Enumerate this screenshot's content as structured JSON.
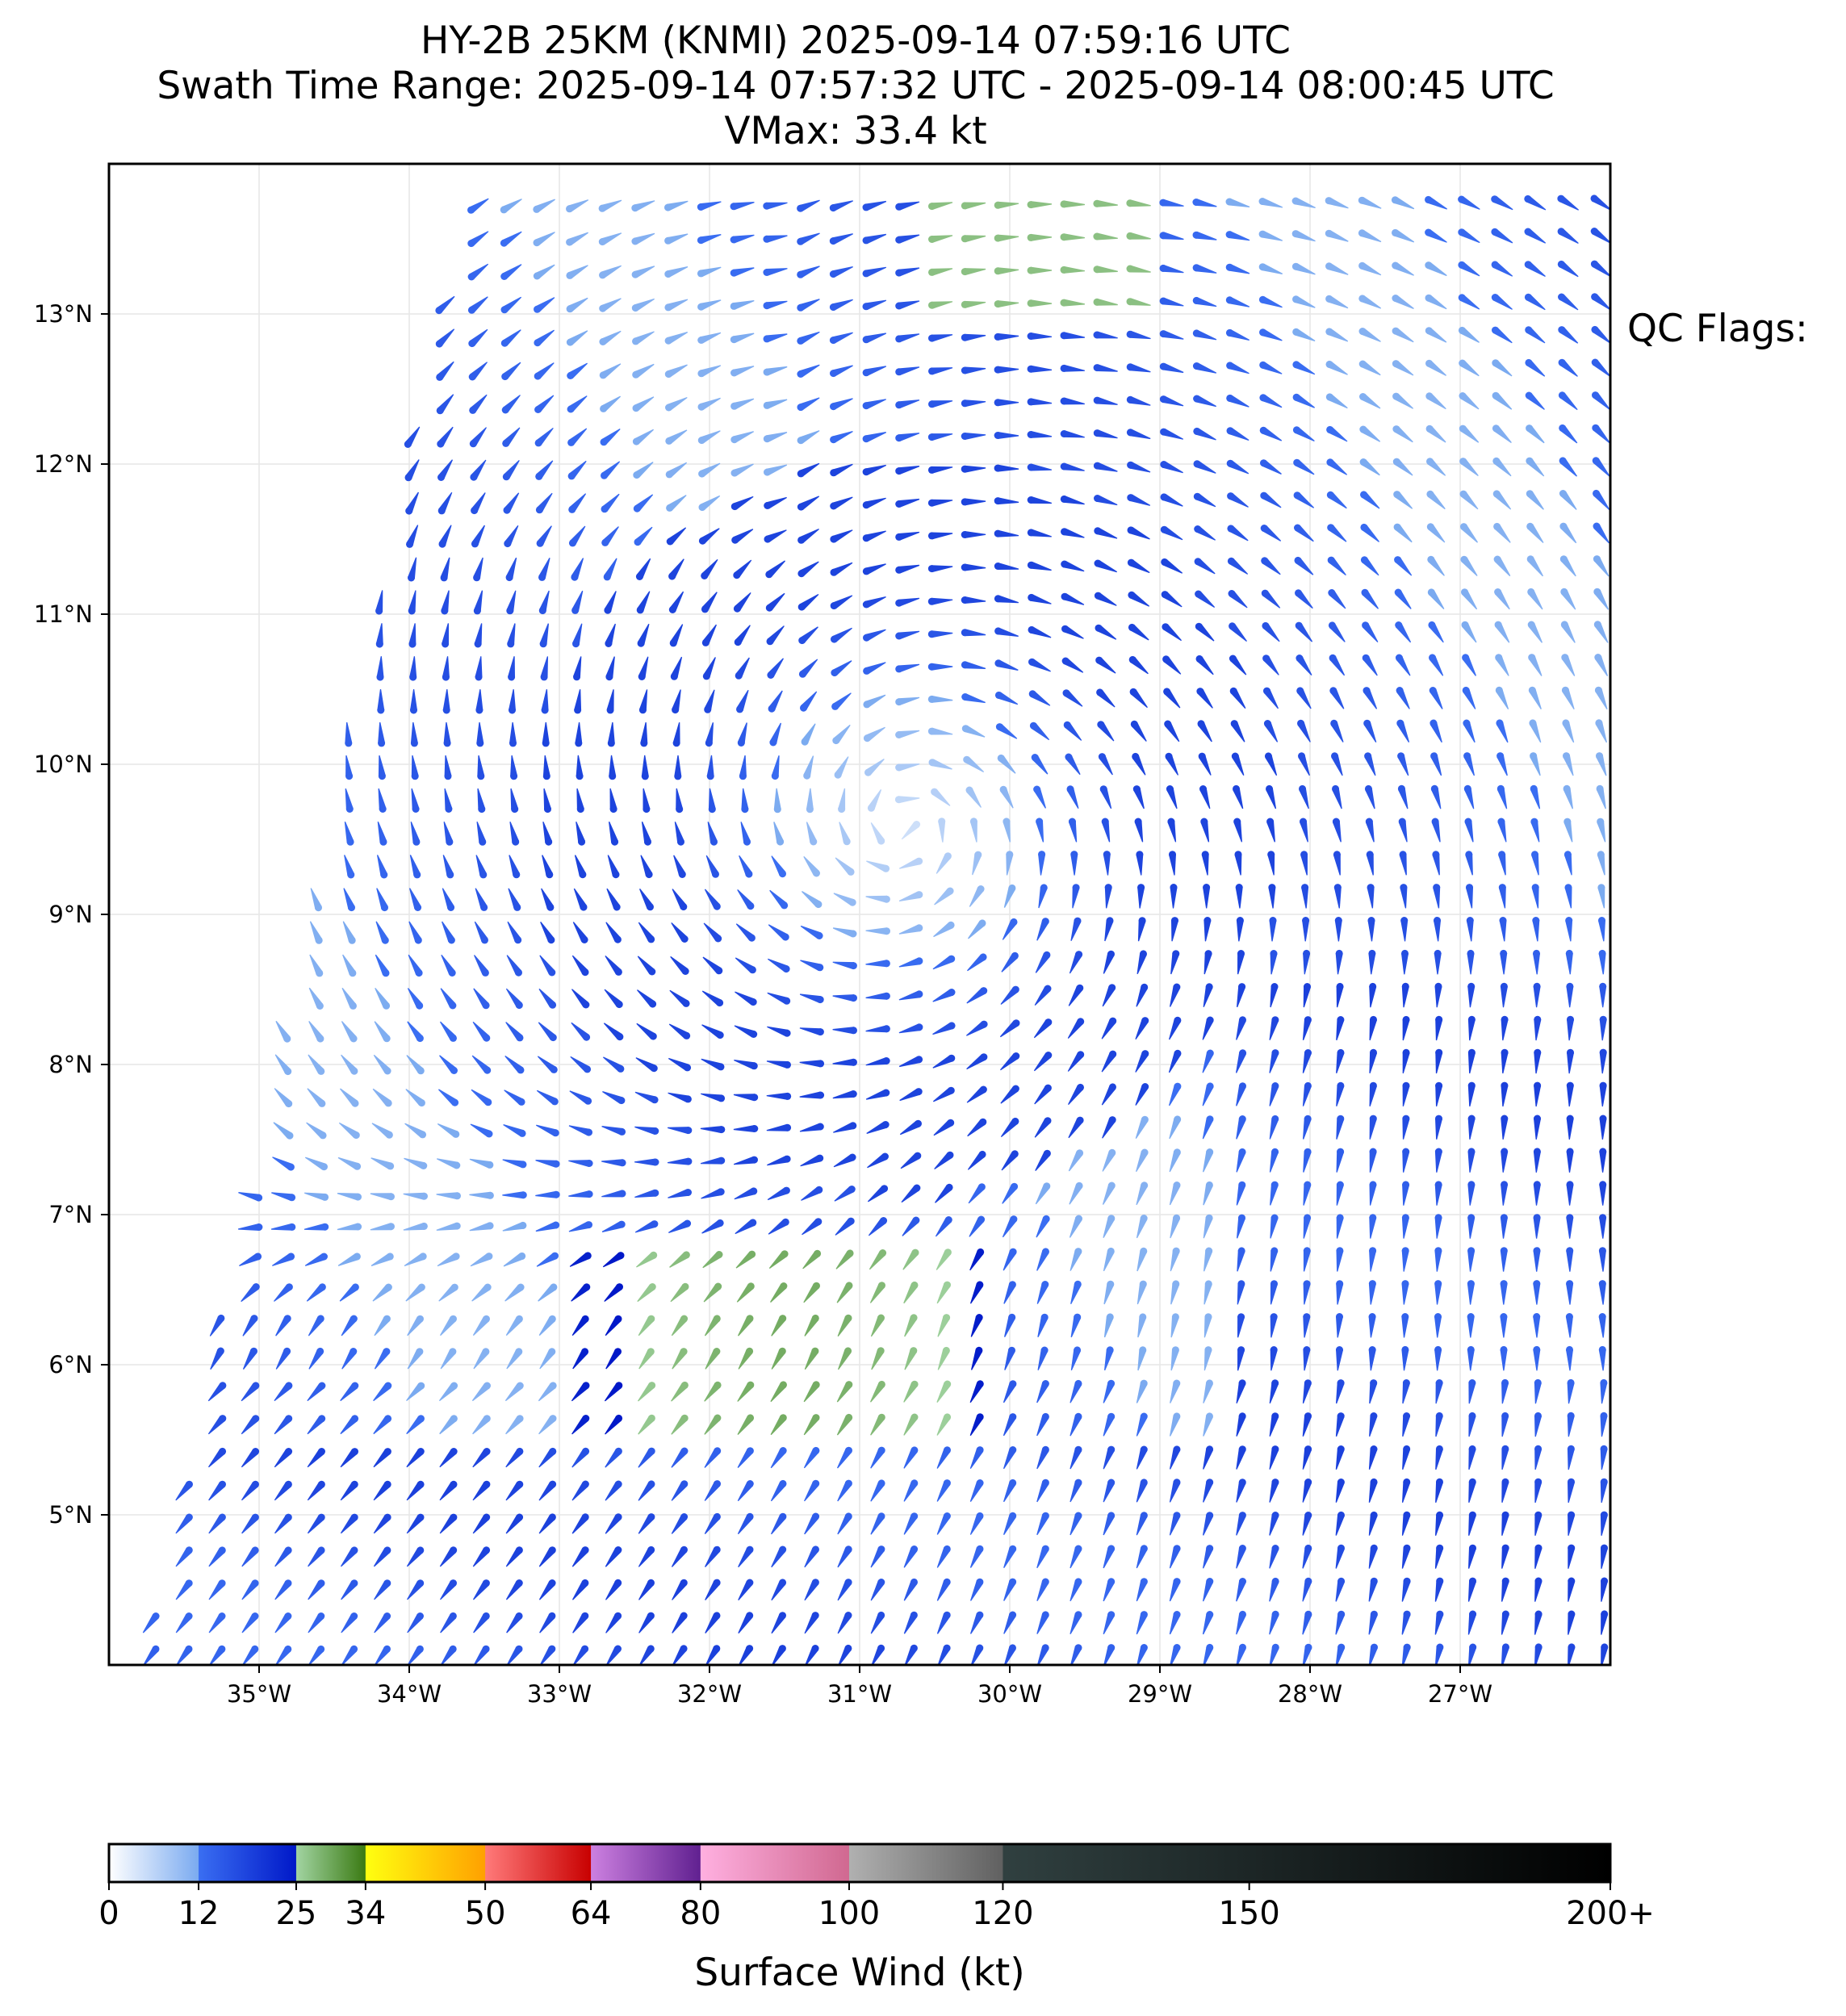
{
  "title_line1": "HY-2B 25KM (KNMI) 2025-09-14 07:59:16 UTC",
  "title_line2": "Swath Time Range: 2025-09-14 07:57:32 UTC - 2025-09-14 08:00:45 UTC",
  "title_line3": "VMax: 33.4 kt",
  "qc_label": "QC Flags:",
  "map": {
    "lon_range": [
      -36.0,
      -26.0
    ],
    "lat_range": [
      4.0,
      14.0
    ],
    "lon_ticks": [
      {
        "value": -35,
        "label": "35°W"
      },
      {
        "value": -34,
        "label": "34°W"
      },
      {
        "value": -33,
        "label": "33°W"
      },
      {
        "value": -32,
        "label": "32°W"
      },
      {
        "value": -31,
        "label": "31°W"
      },
      {
        "value": -30,
        "label": "30°W"
      },
      {
        "value": -29,
        "label": "29°W"
      },
      {
        "value": -28,
        "label": "28°W"
      },
      {
        "value": -27,
        "label": "27°W"
      }
    ],
    "lat_ticks": [
      {
        "value": 5,
        "label": "5°N"
      },
      {
        "value": 6,
        "label": "6°N"
      },
      {
        "value": 7,
        "label": "7°N"
      },
      {
        "value": 8,
        "label": "8°N"
      },
      {
        "value": 9,
        "label": "9°N"
      },
      {
        "value": 10,
        "label": "10°N"
      },
      {
        "value": 11,
        "label": "11°N"
      },
      {
        "value": 12,
        "label": "12°N"
      },
      {
        "value": 13,
        "label": "13°N"
      }
    ],
    "grid": true,
    "swath_left_edge": [
      [
        -35.8,
        4.0
      ],
      [
        -33.6,
        13.85
      ]
    ],
    "vortex_center": {
      "lon": -30.7,
      "lat": 9.6
    },
    "vmax_kt": 33.4
  },
  "colorbar": {
    "label": "Surface Wind (kt)",
    "ticks": [
      {
        "value": 0,
        "label": "0"
      },
      {
        "value": 12,
        "label": "12"
      },
      {
        "value": 25,
        "label": "25"
      },
      {
        "value": 34,
        "label": "34"
      },
      {
        "value": 50,
        "label": "50"
      },
      {
        "value": 64,
        "label": "64"
      },
      {
        "value": 80,
        "label": "80"
      },
      {
        "value": 100,
        "label": "100"
      },
      {
        "value": 120,
        "label": "120"
      },
      {
        "value": 150,
        "label": "150"
      },
      {
        "value": 200,
        "label": "200+"
      }
    ],
    "segments": [
      {
        "from": 0,
        "to": 12,
        "c1": "#ffffff",
        "c2": "#7aaaf0"
      },
      {
        "from": 12,
        "to": 25,
        "c1": "#3a6ef2",
        "c2": "#0018c8"
      },
      {
        "from": 25,
        "to": 34,
        "c1": "#a2d4a2",
        "c2": "#3a7a12"
      },
      {
        "from": 34,
        "to": 50,
        "c1": "#ffff10",
        "c2": "#ffa000"
      },
      {
        "from": 50,
        "to": 64,
        "c1": "#ff7a7a",
        "c2": "#c80000"
      },
      {
        "from": 64,
        "to": 80,
        "c1": "#cc80e0",
        "c2": "#602090"
      },
      {
        "from": 80,
        "to": 100,
        "c1": "#ffb0e0",
        "c2": "#d06890"
      },
      {
        "from": 100,
        "to": 120,
        "c1": "#b0b0b0",
        "c2": "#606060"
      },
      {
        "from": 120,
        "to": 200,
        "c1": "#304040",
        "c2": "#000000"
      }
    ]
  }
}
